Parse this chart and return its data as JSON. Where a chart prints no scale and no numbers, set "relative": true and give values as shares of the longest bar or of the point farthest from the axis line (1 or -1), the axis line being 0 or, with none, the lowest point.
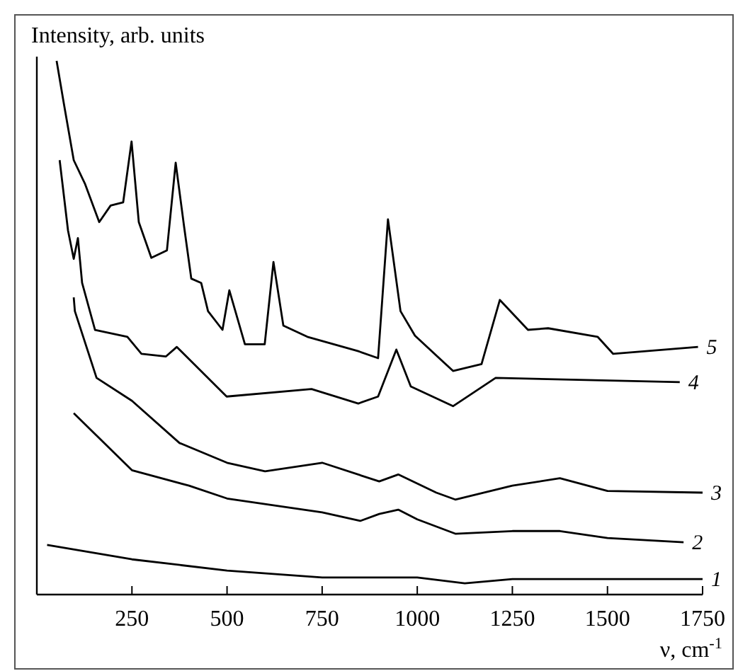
{
  "chart_data": {
    "type": "line",
    "relative": true,
    "ylabel": "Intensity, arb. units",
    "xlabel": "ν, cm$^{-1}$",
    "xlim": [
      0,
      1750
    ],
    "xticks": [
      250,
      500,
      750,
      1000,
      1250,
      1500,
      1750
    ],
    "line_style": "solid",
    "marker": "none",
    "grid": false,
    "series": [
      {
        "name": "1",
        "color": "#000000",
        "x": [
          27,
          250,
          500,
          750,
          1000,
          1125,
          1250,
          1500,
          1750
        ],
        "values": [
          0.093,
          0.066,
          0.045,
          0.032,
          0.032,
          0.021,
          0.029,
          0.029,
          0.029
        ]
      },
      {
        "name": "2",
        "color": "#000000",
        "x": [
          97,
          250,
          400,
          500,
          750,
          850,
          900,
          950,
          1000,
          1100,
          1250,
          1375,
          1500,
          1700
        ],
        "values": [
          0.34,
          0.233,
          0.204,
          0.18,
          0.154,
          0.138,
          0.151,
          0.159,
          0.141,
          0.114,
          0.119,
          0.119,
          0.106,
          0.098
        ]
      },
      {
        "name": "3",
        "color": "#000000",
        "x": [
          97,
          100,
          157,
          250,
          375,
          500,
          600,
          750,
          900,
          950,
          1050,
          1100,
          1250,
          1375,
          1500,
          1750
        ],
        "values": [
          0.557,
          0.531,
          0.406,
          0.363,
          0.284,
          0.247,
          0.231,
          0.247,
          0.212,
          0.225,
          0.191,
          0.178,
          0.204,
          0.218,
          0.194,
          0.191
        ]
      },
      {
        "name": "4",
        "color": "#000000",
        "x": [
          60,
          82,
          97,
          108,
          119,
          153,
          238,
          275,
          339,
          368,
          499,
          722,
          845,
          897,
          945,
          983,
          1094,
          1206,
          1690
        ],
        "values": [
          0.814,
          0.682,
          0.629,
          0.668,
          0.584,
          0.496,
          0.483,
          0.451,
          0.446,
          0.464,
          0.371,
          0.385,
          0.358,
          0.371,
          0.459,
          0.39,
          0.353,
          0.406,
          0.398
        ]
      },
      {
        "name": "5",
        "color": "#000000",
        "x": [
          52,
          71,
          97,
          127,
          164,
          194,
          227,
          249,
          268,
          301,
          342,
          365,
          387,
          406,
          432,
          450,
          488,
          506,
          547,
          599,
          622,
          648,
          711,
          845,
          897,
          923,
          956,
          994,
          1094,
          1169,
          1217,
          1291,
          1344,
          1474,
          1515,
          1738
        ],
        "values": [
          1.0,
          0.92,
          0.814,
          0.769,
          0.698,
          0.729,
          0.735,
          0.849,
          0.698,
          0.631,
          0.645,
          0.809,
          0.69,
          0.592,
          0.584,
          0.531,
          0.496,
          0.57,
          0.469,
          0.469,
          0.623,
          0.504,
          0.483,
          0.456,
          0.443,
          0.703,
          0.531,
          0.485,
          0.419,
          0.432,
          0.552,
          0.496,
          0.499,
          0.483,
          0.451,
          0.464
        ]
      }
    ]
  }
}
